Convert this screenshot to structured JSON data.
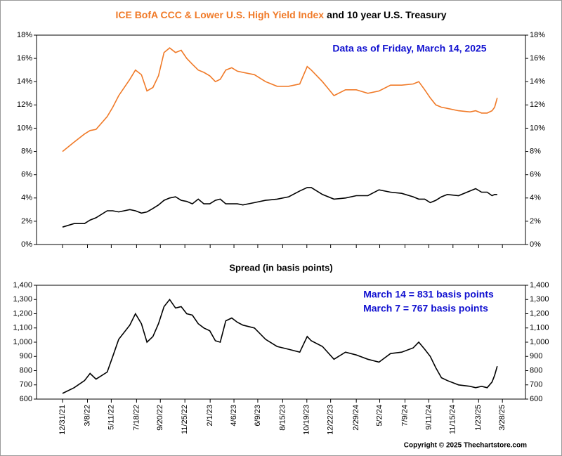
{
  "chart_data": [
    {
      "type": "line",
      "title_parts": [
        {
          "text": "ICE BofA CCC & Lower U.S. High Yield Index",
          "color": "#f07a28"
        },
        {
          "text": "and 10 year U.S. Treasury",
          "color": "#000000"
        }
      ],
      "annotation": "Data as of Friday, March 14, 2025",
      "x": [
        "12/31/21",
        "1/31/22",
        "2/28/22",
        "3/15/22",
        "3/31/22",
        "4/30/22",
        "5/15/22",
        "5/31/22",
        "6/30/22",
        "7/15/22",
        "7/31/22",
        "8/15/22",
        "8/31/22",
        "9/15/22",
        "9/30/22",
        "10/15/22",
        "10/31/22",
        "11/15/22",
        "11/30/22",
        "12/15/22",
        "12/31/22",
        "1/15/23",
        "1/31/23",
        "2/15/23",
        "2/28/23",
        "3/15/23",
        "3/31/23",
        "4/15/23",
        "4/30/23",
        "5/31/23",
        "6/30/23",
        "7/31/23",
        "8/31/23",
        "9/30/23",
        "10/20/23",
        "10/31/23",
        "11/30/23",
        "12/31/23",
        "1/31/24",
        "2/29/24",
        "3/31/24",
        "4/30/24",
        "5/31/24",
        "6/30/24",
        "7/31/24",
        "8/15/24",
        "8/31/24",
        "9/15/24",
        "9/30/24",
        "10/15/24",
        "10/31/24",
        "11/30/24",
        "12/31/24",
        "1/15/25",
        "1/31/25",
        "2/15/25",
        "2/28/25",
        "3/7/25",
        "3/14/25"
      ],
      "series": [
        {
          "color": "#f07a28",
          "values": [
            8.0,
            8.8,
            9.5,
            9.8,
            9.9,
            11.0,
            11.8,
            12.8,
            14.2,
            15.0,
            14.6,
            13.2,
            13.5,
            14.5,
            16.5,
            16.9,
            16.5,
            16.7,
            16.0,
            15.5,
            15.0,
            14.8,
            14.5,
            14.0,
            14.2,
            15.0,
            15.2,
            14.9,
            14.8,
            14.6,
            14.0,
            13.6,
            13.6,
            13.8,
            15.3,
            15.0,
            14.0,
            12.8,
            13.3,
            13.3,
            13.0,
            13.2,
            13.7,
            13.7,
            13.8,
            14.0,
            13.3,
            12.6,
            12.0,
            11.8,
            11.7,
            11.5,
            11.4,
            11.5,
            11.3,
            11.3,
            11.5,
            11.8,
            12.6
          ]
        },
        {
          "color": "#000000",
          "values": [
            1.5,
            1.8,
            1.8,
            2.1,
            2.3,
            2.9,
            2.9,
            2.8,
            3.0,
            2.9,
            2.7,
            2.8,
            3.1,
            3.4,
            3.8,
            4.0,
            4.1,
            3.8,
            3.7,
            3.5,
            3.9,
            3.5,
            3.5,
            3.8,
            3.9,
            3.5,
            3.5,
            3.5,
            3.4,
            3.6,
            3.8,
            3.9,
            4.1,
            4.6,
            4.9,
            4.9,
            4.3,
            3.9,
            4.0,
            4.2,
            4.2,
            4.7,
            4.5,
            4.4,
            4.1,
            3.9,
            3.9,
            3.6,
            3.8,
            4.1,
            4.3,
            4.2,
            4.6,
            4.8,
            4.5,
            4.5,
            4.2,
            4.3,
            4.3
          ]
        }
      ],
      "ylim": [
        0,
        18
      ],
      "yticks": [
        {
          "value": 0,
          "label": "0%"
        },
        {
          "value": 2,
          "label": "2%"
        },
        {
          "value": 4,
          "label": "4%"
        },
        {
          "value": 6,
          "label": "6%"
        },
        {
          "value": 8,
          "label": "8%"
        },
        {
          "value": 10,
          "label": "10%"
        },
        {
          "value": 12,
          "label": "12%"
        },
        {
          "value": 14,
          "label": "14%"
        },
        {
          "value": 16,
          "label": "16%"
        },
        {
          "value": 18,
          "label": "18%"
        }
      ]
    },
    {
      "type": "line",
      "title": "Spread (in basis points)",
      "annotations": [
        "March 14 = 831 basis points",
        "March 7 = 767 basis points"
      ],
      "x": [
        "12/31/21",
        "1/31/22",
        "2/28/22",
        "3/15/22",
        "3/31/22",
        "4/30/22",
        "5/15/22",
        "5/31/22",
        "6/30/22",
        "7/15/22",
        "7/31/22",
        "8/15/22",
        "8/31/22",
        "9/15/22",
        "9/30/22",
        "10/15/22",
        "10/31/22",
        "11/15/22",
        "11/30/22",
        "12/15/22",
        "12/31/22",
        "1/15/23",
        "1/31/23",
        "2/15/23",
        "2/28/23",
        "3/15/23",
        "3/31/23",
        "4/15/23",
        "4/30/23",
        "5/31/23",
        "6/30/23",
        "7/31/23",
        "8/31/23",
        "9/30/23",
        "10/20/23",
        "10/31/23",
        "11/30/23",
        "12/31/23",
        "1/31/24",
        "2/29/24",
        "3/31/24",
        "4/30/24",
        "5/31/24",
        "6/30/24",
        "7/31/24",
        "8/15/24",
        "8/31/24",
        "9/15/24",
        "9/30/24",
        "10/15/24",
        "10/31/24",
        "11/30/24",
        "12/31/24",
        "1/15/25",
        "1/31/25",
        "2/15/25",
        "2/28/25",
        "3/7/25",
        "3/14/25"
      ],
      "series": [
        {
          "color": "#000000",
          "values": [
            640,
            680,
            730,
            780,
            740,
            790,
            900,
            1020,
            1120,
            1200,
            1130,
            1000,
            1040,
            1130,
            1250,
            1300,
            1240,
            1250,
            1200,
            1190,
            1130,
            1100,
            1080,
            1010,
            1000,
            1150,
            1170,
            1140,
            1120,
            1100,
            1020,
            970,
            950,
            930,
            1040,
            1010,
            970,
            880,
            930,
            910,
            880,
            860,
            920,
            930,
            960,
            1000,
            950,
            900,
            820,
            750,
            730,
            700,
            690,
            680,
            690,
            680,
            720,
            767,
            831
          ]
        }
      ],
      "xlim": [
        "10/22/21",
        "5/29/25"
      ],
      "xticks": [
        "12/31/21",
        "3/8/22",
        "5/11/22",
        "7/18/22",
        "9/20/22",
        "11/25/22",
        "2/1/23",
        "4/6/23",
        "6/9/23",
        "8/15/23",
        "10/19/23",
        "12/22/23",
        "2/29/24",
        "5/2/24",
        "7/9/24",
        "9/11/24",
        "11/15/24",
        "1/23/25",
        "3/28/25"
      ],
      "ylim": [
        600,
        1400
      ],
      "yticks": [
        600,
        700,
        800,
        900,
        {
          "value": 1000,
          "label": "1,000"
        },
        {
          "value": 1100,
          "label": "1,100"
        },
        {
          "value": 1200,
          "label": "1,200"
        },
        {
          "value": 1300,
          "label": "1,300"
        },
        {
          "value": 1400,
          "label": "1,400"
        }
      ]
    }
  ],
  "copyright": "Copyright © 2025 Thechartstore.com"
}
